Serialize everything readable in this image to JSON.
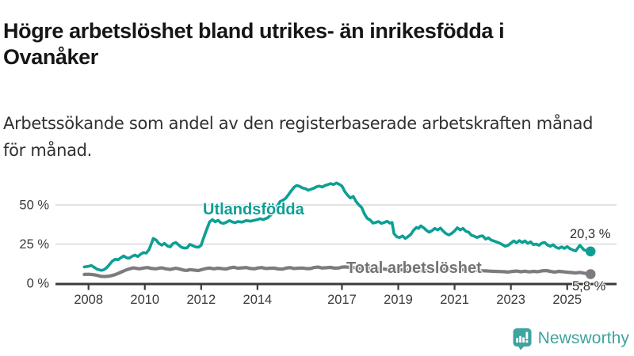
{
  "header": {
    "title": "Högre arbetslöshet bland utrikes- än inrikesfödda i\nOvanåker",
    "subtitle": "Arbetssökande som andel av den registerbaserade arbetskraften månad\nför månad."
  },
  "footer": {
    "brand": "Newsworthy"
  },
  "colors": {
    "accent_teal": "#0d9f94",
    "line_gray": "#7c7c80",
    "label_gray": "#737377",
    "axis": "#3b3b3b",
    "grid": "#d9d9d9",
    "tick_text": "#3a3a3a"
  },
  "chart_data": {
    "type": "line",
    "unit": "%",
    "title": "",
    "xlabel": "",
    "ylabel": "",
    "ylim": [
      0,
      70
    ],
    "xlim_years": [
      2006.8,
      2026.8
    ],
    "grid": "horizontal",
    "legend_position": "inline-labels",
    "y_ticks": [
      {
        "value": 0,
        "label": "0 %"
      },
      {
        "value": 25,
        "label": "25 %"
      },
      {
        "value": 50,
        "label": "50 %"
      }
    ],
    "x_ticks": [
      {
        "year": 2008,
        "label": "2008"
      },
      {
        "year": 2010,
        "label": "2010"
      },
      {
        "year": 2012,
        "label": "2012"
      },
      {
        "year": 2014,
        "label": "2014"
      },
      {
        "year": 2017,
        "label": "2017"
      },
      {
        "year": 2019,
        "label": "2019"
      },
      {
        "year": 2021,
        "label": "2021"
      },
      {
        "year": 2023,
        "label": "2023"
      },
      {
        "year": 2025,
        "label": "2025"
      }
    ],
    "series": [
      {
        "name": "Utlandsfödda",
        "color": "#0d9f94",
        "end_value": 20.3,
        "end_label": "20,3 %",
        "points": [
          [
            2007.85,
            10.4
          ],
          [
            2008.0,
            10.8
          ],
          [
            2008.1,
            11.3
          ],
          [
            2008.2,
            10.2
          ],
          [
            2008.3,
            9.0
          ],
          [
            2008.45,
            8.2
          ],
          [
            2008.55,
            8.6
          ],
          [
            2008.65,
            10.0
          ],
          [
            2008.75,
            12.0
          ],
          [
            2008.85,
            14.2
          ],
          [
            2008.95,
            15.3
          ],
          [
            2009.05,
            15.0
          ],
          [
            2009.15,
            16.3
          ],
          [
            2009.25,
            17.4
          ],
          [
            2009.35,
            16.2
          ],
          [
            2009.45,
            16.0
          ],
          [
            2009.55,
            17.2
          ],
          [
            2009.65,
            18.0
          ],
          [
            2009.75,
            17.0
          ],
          [
            2009.85,
            18.5
          ],
          [
            2009.95,
            19.6
          ],
          [
            2010.05,
            19.2
          ],
          [
            2010.15,
            21.5
          ],
          [
            2010.25,
            26.0
          ],
          [
            2010.3,
            28.6
          ],
          [
            2010.4,
            27.6
          ],
          [
            2010.5,
            25.4
          ],
          [
            2010.6,
            24.3
          ],
          [
            2010.7,
            25.4
          ],
          [
            2010.8,
            23.8
          ],
          [
            2010.9,
            23.2
          ],
          [
            2011.0,
            25.3
          ],
          [
            2011.1,
            26.0
          ],
          [
            2011.2,
            24.4
          ],
          [
            2011.3,
            23.0
          ],
          [
            2011.4,
            22.4
          ],
          [
            2011.5,
            22.6
          ],
          [
            2011.6,
            24.8
          ],
          [
            2011.7,
            24.0
          ],
          [
            2011.8,
            23.2
          ],
          [
            2011.9,
            23.0
          ],
          [
            2012.0,
            24.2
          ],
          [
            2012.05,
            27.0
          ],
          [
            2012.15,
            32.0
          ],
          [
            2012.25,
            36.8
          ],
          [
            2012.3,
            39.2
          ],
          [
            2012.4,
            40.6
          ],
          [
            2012.5,
            39.2
          ],
          [
            2012.6,
            40.2
          ],
          [
            2012.7,
            38.6
          ],
          [
            2012.8,
            38.2
          ],
          [
            2012.9,
            39.0
          ],
          [
            2013.0,
            40.0
          ],
          [
            2013.1,
            39.2
          ],
          [
            2013.2,
            38.6
          ],
          [
            2013.3,
            39.4
          ],
          [
            2013.45,
            39.0
          ],
          [
            2013.6,
            40.0
          ],
          [
            2013.75,
            39.6
          ],
          [
            2013.9,
            40.2
          ],
          [
            2014.0,
            40.6
          ],
          [
            2014.1,
            41.2
          ],
          [
            2014.2,
            40.6
          ],
          [
            2014.35,
            41.6
          ],
          [
            2014.5,
            44.0
          ],
          [
            2014.6,
            46.5
          ],
          [
            2014.7,
            49.0
          ],
          [
            2014.8,
            52.0
          ],
          [
            2014.9,
            53.0
          ],
          [
            2015.0,
            54.2
          ],
          [
            2015.1,
            56.5
          ],
          [
            2015.2,
            59.0
          ],
          [
            2015.3,
            61.3
          ],
          [
            2015.4,
            62.4
          ],
          [
            2015.5,
            61.8
          ],
          [
            2015.6,
            60.8
          ],
          [
            2015.7,
            60.4
          ],
          [
            2015.8,
            59.4
          ],
          [
            2015.9,
            60.0
          ],
          [
            2016.0,
            60.6
          ],
          [
            2016.1,
            61.6
          ],
          [
            2016.2,
            62.0
          ],
          [
            2016.3,
            61.4
          ],
          [
            2016.4,
            62.4
          ],
          [
            2016.5,
            63.0
          ],
          [
            2016.6,
            63.6
          ],
          [
            2016.7,
            63.0
          ],
          [
            2016.8,
            64.0
          ],
          [
            2016.9,
            63.2
          ],
          [
            2017.0,
            62.0
          ],
          [
            2017.1,
            58.6
          ],
          [
            2017.2,
            56.2
          ],
          [
            2017.3,
            54.4
          ],
          [
            2017.4,
            55.4
          ],
          [
            2017.5,
            52.2
          ],
          [
            2017.6,
            50.0
          ],
          [
            2017.7,
            48.4
          ],
          [
            2017.8,
            44.2
          ],
          [
            2017.9,
            41.4
          ],
          [
            2018.0,
            40.4
          ],
          [
            2018.1,
            38.4
          ],
          [
            2018.2,
            38.8
          ],
          [
            2018.3,
            39.4
          ],
          [
            2018.4,
            38.2
          ],
          [
            2018.5,
            38.8
          ],
          [
            2018.6,
            39.6
          ],
          [
            2018.7,
            38.4
          ],
          [
            2018.78,
            38.8
          ],
          [
            2018.85,
            31.6
          ],
          [
            2018.95,
            29.6
          ],
          [
            2019.05,
            29.2
          ],
          [
            2019.15,
            30.2
          ],
          [
            2019.25,
            28.6
          ],
          [
            2019.35,
            29.8
          ],
          [
            2019.45,
            31.2
          ],
          [
            2019.55,
            34.0
          ],
          [
            2019.65,
            35.6
          ],
          [
            2019.72,
            35.0
          ],
          [
            2019.8,
            36.6
          ],
          [
            2019.9,
            35.4
          ],
          [
            2020.0,
            33.8
          ],
          [
            2020.1,
            32.6
          ],
          [
            2020.2,
            33.6
          ],
          [
            2020.3,
            35.0
          ],
          [
            2020.4,
            34.0
          ],
          [
            2020.5,
            35.2
          ],
          [
            2020.6,
            33.2
          ],
          [
            2020.7,
            31.6
          ],
          [
            2020.8,
            30.8
          ],
          [
            2020.9,
            31.8
          ],
          [
            2021.0,
            33.4
          ],
          [
            2021.1,
            35.4
          ],
          [
            2021.2,
            34.0
          ],
          [
            2021.3,
            35.0
          ],
          [
            2021.4,
            33.2
          ],
          [
            2021.5,
            32.6
          ],
          [
            2021.6,
            30.6
          ],
          [
            2021.7,
            30.0
          ],
          [
            2021.8,
            29.2
          ],
          [
            2021.9,
            30.0
          ],
          [
            2022.0,
            30.2
          ],
          [
            2022.1,
            28.2
          ],
          [
            2022.2,
            29.0
          ],
          [
            2022.3,
            27.6
          ],
          [
            2022.45,
            26.6
          ],
          [
            2022.6,
            25.6
          ],
          [
            2022.7,
            24.6
          ],
          [
            2022.8,
            23.6
          ],
          [
            2022.9,
            24.2
          ],
          [
            2023.0,
            25.6
          ],
          [
            2023.1,
            27.0
          ],
          [
            2023.2,
            25.8
          ],
          [
            2023.3,
            27.2
          ],
          [
            2023.4,
            26.0
          ],
          [
            2023.5,
            27.0
          ],
          [
            2023.6,
            25.4
          ],
          [
            2023.7,
            26.4
          ],
          [
            2023.8,
            24.6
          ],
          [
            2023.9,
            25.0
          ],
          [
            2024.0,
            24.2
          ],
          [
            2024.1,
            25.6
          ],
          [
            2024.2,
            26.0
          ],
          [
            2024.3,
            24.4
          ],
          [
            2024.4,
            23.6
          ],
          [
            2024.5,
            24.6
          ],
          [
            2024.6,
            23.0
          ],
          [
            2024.7,
            22.2
          ],
          [
            2024.8,
            23.2
          ],
          [
            2024.9,
            22.2
          ],
          [
            2025.0,
            23.4
          ],
          [
            2025.1,
            22.0
          ],
          [
            2025.2,
            21.2
          ],
          [
            2025.3,
            20.6
          ],
          [
            2025.45,
            24.2
          ],
          [
            2025.6,
            21.2
          ],
          [
            2025.83,
            20.3
          ]
        ]
      },
      {
        "name": "Total arbetslöshet",
        "color": "#7c7c80",
        "end_value": 5.8,
        "end_label": "5,8 %",
        "points": [
          [
            2007.85,
            5.6
          ],
          [
            2008.0,
            5.7
          ],
          [
            2008.15,
            5.5
          ],
          [
            2008.3,
            5.0
          ],
          [
            2008.45,
            4.4
          ],
          [
            2008.6,
            4.3
          ],
          [
            2008.75,
            4.6
          ],
          [
            2008.9,
            5.2
          ],
          [
            2009.05,
            6.2
          ],
          [
            2009.2,
            7.4
          ],
          [
            2009.35,
            8.6
          ],
          [
            2009.5,
            9.4
          ],
          [
            2009.6,
            9.8
          ],
          [
            2009.7,
            9.5
          ],
          [
            2009.8,
            9.2
          ],
          [
            2009.9,
            9.5
          ],
          [
            2010.0,
            9.8
          ],
          [
            2010.1,
            10.0
          ],
          [
            2010.25,
            9.4
          ],
          [
            2010.4,
            9.2
          ],
          [
            2010.5,
            9.6
          ],
          [
            2010.6,
            9.8
          ],
          [
            2010.75,
            9.2
          ],
          [
            2010.9,
            8.8
          ],
          [
            2011.0,
            9.2
          ],
          [
            2011.1,
            9.6
          ],
          [
            2011.25,
            9.0
          ],
          [
            2011.4,
            8.3
          ],
          [
            2011.5,
            8.2
          ],
          [
            2011.6,
            8.7
          ],
          [
            2011.75,
            8.4
          ],
          [
            2011.9,
            8.1
          ],
          [
            2012.0,
            8.6
          ],
          [
            2012.15,
            9.3
          ],
          [
            2012.3,
            9.7
          ],
          [
            2012.45,
            9.2
          ],
          [
            2012.6,
            9.6
          ],
          [
            2012.75,
            9.3
          ],
          [
            2012.9,
            9.1
          ],
          [
            2013.0,
            9.7
          ],
          [
            2013.15,
            10.2
          ],
          [
            2013.3,
            9.6
          ],
          [
            2013.45,
            9.8
          ],
          [
            2013.6,
            10.0
          ],
          [
            2013.75,
            9.4
          ],
          [
            2013.9,
            9.2
          ],
          [
            2014.0,
            9.7
          ],
          [
            2014.15,
            10.0
          ],
          [
            2014.3,
            9.4
          ],
          [
            2014.45,
            9.6
          ],
          [
            2014.6,
            9.6
          ],
          [
            2014.75,
            9.1
          ],
          [
            2014.9,
            9.0
          ],
          [
            2015.0,
            9.6
          ],
          [
            2015.15,
            10.0
          ],
          [
            2015.3,
            9.4
          ],
          [
            2015.45,
            9.6
          ],
          [
            2015.6,
            9.7
          ],
          [
            2015.75,
            9.3
          ],
          [
            2015.9,
            9.4
          ],
          [
            2016.0,
            10.0
          ],
          [
            2016.15,
            10.3
          ],
          [
            2016.3,
            9.7
          ],
          [
            2016.45,
            9.9
          ],
          [
            2016.6,
            10.1
          ],
          [
            2016.75,
            9.6
          ],
          [
            2016.9,
            9.8
          ],
          [
            2017.0,
            10.3
          ],
          [
            2017.15,
            10.4
          ],
          [
            2017.3,
            10.0
          ],
          [
            2017.5,
            9.9
          ],
          [
            2017.7,
            9.6
          ],
          [
            2017.9,
            9.4
          ],
          [
            2018.1,
            9.6
          ],
          [
            2018.3,
            9.2
          ],
          [
            2018.5,
            9.0
          ],
          [
            2018.7,
            8.7
          ],
          [
            2018.9,
            8.5
          ],
          [
            2019.1,
            8.6
          ],
          [
            2019.3,
            8.3
          ],
          [
            2019.5,
            8.2
          ],
          [
            2019.7,
            8.0
          ],
          [
            2019.9,
            7.9
          ],
          [
            2020.1,
            8.2
          ],
          [
            2020.3,
            8.8
          ],
          [
            2020.5,
            9.0
          ],
          [
            2020.7,
            8.8
          ],
          [
            2020.9,
            8.6
          ],
          [
            2021.1,
            8.8
          ],
          [
            2021.3,
            8.6
          ],
          [
            2021.5,
            8.4
          ],
          [
            2021.7,
            8.2
          ],
          [
            2021.9,
            8.0
          ],
          [
            2022.1,
            7.9
          ],
          [
            2022.3,
            7.7
          ],
          [
            2022.5,
            7.5
          ],
          [
            2022.7,
            7.4
          ],
          [
            2022.9,
            7.1
          ],
          [
            2023.05,
            7.5
          ],
          [
            2023.2,
            7.8
          ],
          [
            2023.35,
            7.3
          ],
          [
            2023.5,
            7.7
          ],
          [
            2023.65,
            7.2
          ],
          [
            2023.8,
            7.6
          ],
          [
            2023.95,
            7.3
          ],
          [
            2024.1,
            7.9
          ],
          [
            2024.25,
            8.1
          ],
          [
            2024.4,
            7.6
          ],
          [
            2024.55,
            7.1
          ],
          [
            2024.7,
            7.6
          ],
          [
            2024.85,
            7.3
          ],
          [
            2025.0,
            7.0
          ],
          [
            2025.15,
            6.8
          ],
          [
            2025.3,
            6.5
          ],
          [
            2025.45,
            6.9
          ],
          [
            2025.6,
            6.4
          ],
          [
            2025.83,
            5.8
          ]
        ]
      }
    ]
  }
}
